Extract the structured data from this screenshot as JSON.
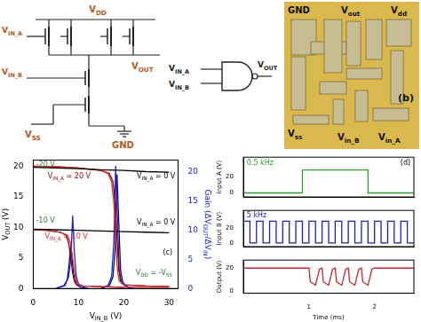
{
  "schematic": {
    "vdd": [
      {
        "text": "V"
      },
      {
        "sub": "DD"
      }
    ],
    "vin_a": [
      {
        "text": "V"
      },
      {
        "sub": "IN_A"
      }
    ],
    "vin_b": [
      {
        "text": "V"
      },
      {
        "sub": "IN_B"
      }
    ],
    "vout": [
      {
        "text": "V"
      },
      {
        "sub": "OUT"
      }
    ],
    "vss": [
      {
        "text": "V"
      },
      {
        "sub": "SS"
      }
    ],
    "gnd": "GND"
  },
  "symbol": {
    "vin_a": [
      {
        "text": "V"
      },
      {
        "sub": "IN_A"
      }
    ],
    "vin_b": [
      {
        "text": "V"
      },
      {
        "sub": "IN_B"
      }
    ],
    "vout": [
      {
        "text": "V"
      },
      {
        "sub": "OUT"
      }
    ]
  },
  "photo": {
    "gnd": "GND",
    "vout": [
      {
        "text": "V"
      },
      {
        "sub": "out"
      }
    ],
    "vdd": [
      {
        "text": "V"
      },
      {
        "sub": "dd"
      }
    ],
    "vss": [
      {
        "text": "V"
      },
      {
        "sub": "ss"
      }
    ],
    "vin_b": [
      {
        "text": "V"
      },
      {
        "sub": "in_B"
      }
    ],
    "vin_a": [
      {
        "text": "V"
      },
      {
        "sub": "in_A"
      }
    ],
    "panel": "(b)"
  },
  "chart_data": [
    {
      "type": "line",
      "xlabel": [
        {
          "text": "V"
        },
        {
          "sub": "IN_B"
        },
        {
          "text": " (V)"
        }
      ],
      "ylabel": [
        {
          "text": "V"
        },
        {
          "sub": "OUT"
        },
        {
          "text": " (V)"
        }
      ],
      "y2label": [
        {
          "text": "Gain (ΔV"
        },
        {
          "sub": "OUT"
        },
        {
          "text": "/ΔV"
        },
        {
          "sub": "IN"
        },
        {
          "text": ")"
        }
      ],
      "xlim": [
        0,
        32
      ],
      "xticks": [
        0,
        10,
        20,
        30
      ],
      "ylim": [
        0,
        21
      ],
      "yticks": [
        0,
        5,
        10,
        15,
        20
      ],
      "y2lim": [
        0,
        22
      ],
      "y2ticks": [
        0,
        5,
        10,
        15,
        20
      ],
      "grid": false,
      "series": [
        {
          "color": "#000000",
          "x": [
            0,
            5,
            10,
            15,
            20,
            25,
            30
          ],
          "values": [
            19.8,
            19.7,
            19.6,
            19.4,
            19.3,
            19.1,
            19.0
          ]
        },
        {
          "color": "#d32f2f",
          "x": [
            0,
            5,
            10,
            15,
            16.5,
            17.3,
            17.8,
            18.2,
            18.6,
            19,
            20,
            25,
            30
          ],
          "values": [
            20,
            19.9,
            19.7,
            19.3,
            18.8,
            17.5,
            14,
            8,
            3,
            1.2,
            0.6,
            0.4,
            0.3
          ]
        },
        {
          "color": "#8b0000",
          "x": [
            0,
            5,
            10,
            15,
            16.8,
            17.6,
            18.1,
            18.5,
            18.9,
            19.3,
            20,
            25,
            30
          ],
          "values": [
            20,
            19.9,
            19.7,
            19.3,
            18.8,
            17.5,
            14,
            8,
            3,
            1.2,
            0.6,
            0.4,
            0.3
          ]
        },
        {
          "color": "#000000",
          "x": [
            0,
            5,
            10,
            15,
            20,
            25,
            30
          ],
          "values": [
            9.7,
            9.6,
            9.5,
            9.4,
            9.3,
            9.2,
            9.1
          ]
        },
        {
          "color": "#d32f2f",
          "x": [
            0,
            3,
            6,
            7.5,
            8.2,
            8.7,
            9.1,
            9.5,
            10,
            11,
            15,
            20,
            25,
            30
          ],
          "values": [
            9.6,
            9.5,
            9.2,
            8.7,
            7.5,
            5,
            2.5,
            1.2,
            0.6,
            0.4,
            0.3,
            0.2,
            0.2,
            0.2
          ]
        },
        {
          "color": "#8b0000",
          "x": [
            0,
            3,
            6,
            7.2,
            7.8,
            8.3,
            8.7,
            9.1,
            9.6,
            11,
            15,
            20
          ],
          "values": [
            9.6,
            9.5,
            9.2,
            8.7,
            7.5,
            5,
            2.5,
            1.2,
            0.6,
            0.4,
            0.3,
            0.2
          ]
        },
        {
          "color": "#1e22d8",
          "axis": "y2",
          "x": [
            15,
            16.5,
            17.3,
            17.8,
            18.2,
            18.6,
            19,
            19.5,
            20.5,
            22
          ],
          "values": [
            0,
            0.5,
            2,
            8,
            21,
            12,
            3,
            1,
            0.3,
            0
          ]
        },
        {
          "color": "#0a0a80",
          "axis": "y2",
          "x": [
            15,
            16.8,
            17.6,
            18.1,
            18.5,
            18.9,
            19.3,
            19.8,
            20.8,
            22
          ],
          "values": [
            0,
            0.5,
            2,
            7,
            19.5,
            11,
            3,
            1,
            0.3,
            0
          ]
        },
        {
          "color": "#1e22d8",
          "axis": "y2",
          "x": [
            5,
            7,
            7.8,
            8.3,
            8.7,
            9.1,
            9.5,
            10,
            11,
            12
          ],
          "values": [
            0,
            0.5,
            2,
            5,
            12.5,
            6,
            2,
            0.8,
            0.3,
            0
          ]
        },
        {
          "color": "#0a0a80",
          "axis": "y2",
          "x": [
            5,
            6.8,
            7.5,
            7.9,
            8.3,
            8.7,
            9.1,
            9.6,
            10.5,
            12
          ],
          "values": [
            0,
            0.5,
            1.5,
            4,
            7.5,
            4,
            1.5,
            0.6,
            0.2,
            0
          ]
        }
      ],
      "annotations": [
        {
          "text": "-20 V",
          "color": "#2e7d32"
        },
        {
          "text": [
            {
              "text": "V"
            },
            {
              "sub": "IN_A"
            },
            {
              "text": " = 0 V"
            }
          ],
          "color": "#000000"
        },
        {
          "text": [
            {
              "text": "V"
            },
            {
              "sub": "IN_A"
            },
            {
              "text": " = 20 V"
            }
          ],
          "color": "#8b0000"
        },
        {
          "text": "-10 V",
          "color": "#2e7d32"
        },
        {
          "text": [
            {
              "text": "V"
            },
            {
              "sub": "IN_A"
            },
            {
              "text": " = 0 V"
            }
          ],
          "color": "#000000"
        },
        {
          "text": [
            {
              "text": "V"
            },
            {
              "sub": "IN_A"
            },
            {
              "text": " = 10 V"
            }
          ],
          "color": "#d32f2f"
        },
        {
          "text": [
            {
              "text": "V"
            },
            {
              "sub": "DD"
            },
            {
              "text": " = -V"
            },
            {
              "sub": "SS"
            }
          ],
          "color": "#2e7d32"
        },
        {
          "text": "(c)",
          "color": "#000000"
        }
      ]
    },
    {
      "type": "line",
      "ylabel": "Input A (V)",
      "xlim": [
        0,
        2.6
      ],
      "xticks": [
        1,
        2
      ],
      "ylim": [
        -5,
        45
      ],
      "yticks": [
        0,
        20
      ],
      "grid": false,
      "tick_labels": "y",
      "series": [
        {
          "color": "#2e9e2e",
          "x": [
            0,
            0.9,
            0.9,
            1.9,
            1.9,
            2.6
          ],
          "values": [
            0,
            0,
            29,
            29,
            0,
            0
          ]
        }
      ],
      "annotations": [
        {
          "text": "0.5 kHz",
          "color": "#2e9e2e"
        },
        {
          "text": "(d)",
          "color": "#000000"
        }
      ]
    },
    {
      "type": "line",
      "ylabel": "Input B (V)",
      "xlim": [
        0,
        2.6
      ],
      "xticks": [
        1,
        2
      ],
      "ylim": [
        -5,
        45
      ],
      "yticks": [
        0,
        20
      ],
      "grid": false,
      "tick_labels": "y",
      "series": [
        {
          "color": "#1f1fbf",
          "x": [
            0,
            0.1,
            0.1,
            0.2,
            0.2,
            0.3,
            0.3,
            0.4,
            0.4,
            0.5,
            0.5,
            0.6,
            0.6,
            0.7,
            0.7,
            0.8,
            0.8,
            0.9,
            0.9,
            1.0,
            1.0,
            1.1,
            1.1,
            1.2,
            1.2,
            1.3,
            1.3,
            1.4,
            1.4,
            1.5,
            1.5,
            1.6,
            1.6,
            1.7,
            1.7,
            1.8,
            1.8,
            1.9,
            1.9,
            2.0,
            2.0,
            2.1,
            2.1,
            2.2,
            2.2,
            2.3,
            2.3,
            2.4,
            2.4,
            2.5,
            2.5,
            2.6
          ],
          "values": [
            30,
            30,
            0,
            0,
            30,
            30,
            0,
            0,
            30,
            30,
            0,
            0,
            30,
            30,
            0,
            0,
            30,
            30,
            0,
            0,
            30,
            30,
            0,
            0,
            30,
            30,
            0,
            0,
            30,
            30,
            0,
            0,
            30,
            30,
            0,
            0,
            30,
            30,
            0,
            0,
            30,
            30,
            0,
            0,
            30,
            30,
            0,
            0,
            30,
            30,
            0,
            0
          ]
        }
      ],
      "annotations": [
        {
          "text": "5 kHz",
          "color": "#1f1fbf"
        }
      ]
    },
    {
      "type": "line",
      "ylabel": "Output (V)",
      "xlabel": "Time (ms)",
      "xlim": [
        0,
        2.6
      ],
      "xticks": [
        1,
        2
      ],
      "ylim": [
        -2,
        27
      ],
      "yticks": [
        0,
        20
      ],
      "grid": false,
      "series": [
        {
          "color": "#c0282d",
          "x": [
            0,
            0.9,
            1.0,
            1.02,
            1.1,
            1.16,
            1.2,
            1.22,
            1.3,
            1.36,
            1.4,
            1.42,
            1.5,
            1.56,
            1.6,
            1.62,
            1.7,
            1.76,
            1.8,
            1.82,
            1.9,
            1.96,
            2.0,
            2.6
          ],
          "values": [
            20,
            20,
            20,
            8,
            5,
            19,
            20,
            8,
            5,
            19,
            20,
            8,
            5,
            19,
            20,
            8,
            5,
            19,
            20,
            8,
            5,
            19,
            20,
            20
          ]
        }
      ],
      "annotations": []
    }
  ]
}
